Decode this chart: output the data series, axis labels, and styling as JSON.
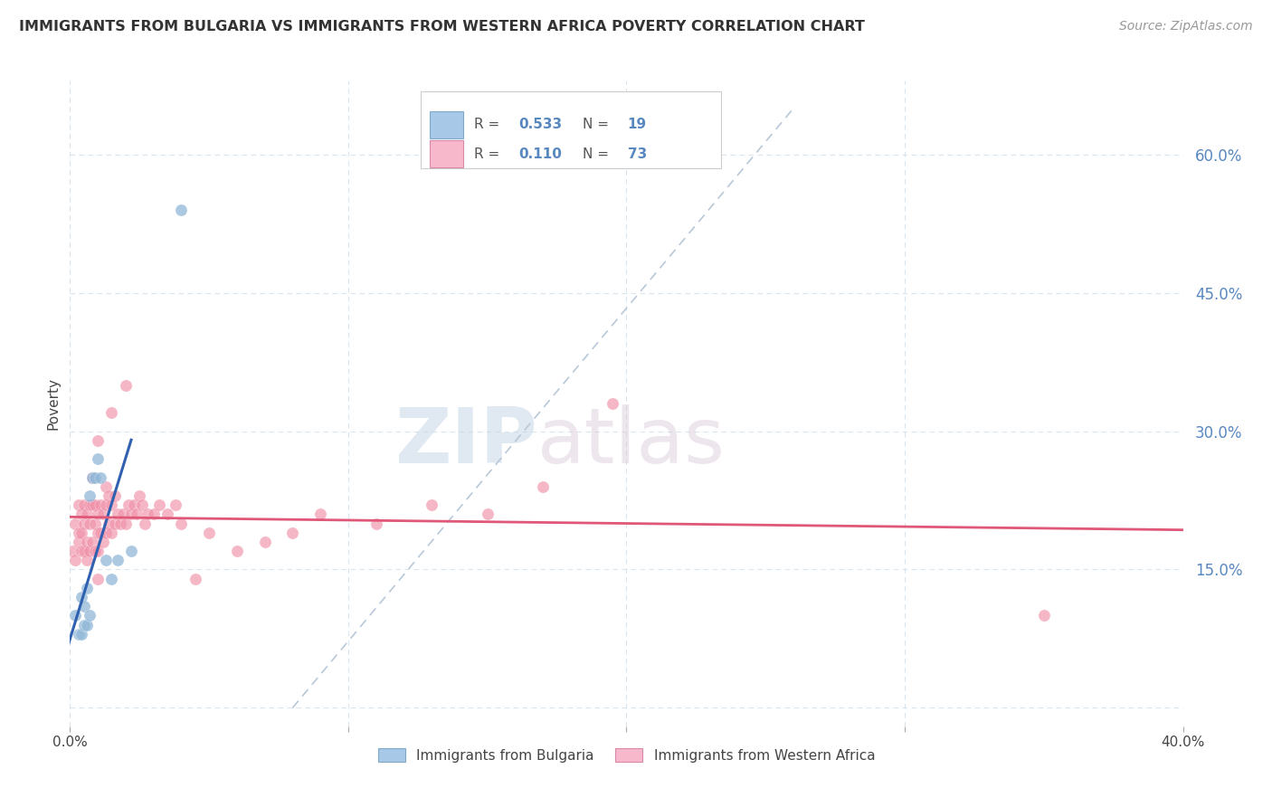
{
  "title": "IMMIGRANTS FROM BULGARIA VS IMMIGRANTS FROM WESTERN AFRICA POVERTY CORRELATION CHART",
  "source": "Source: ZipAtlas.com",
  "ylabel": "Poverty",
  "xlim": [
    0.0,
    0.4
  ],
  "ylim": [
    -0.02,
    0.68
  ],
  "yticks_right": [
    0.15,
    0.3,
    0.45,
    0.6
  ],
  "ytick_labels_right": [
    "15.0%",
    "30.0%",
    "45.0%",
    "60.0%"
  ],
  "legend_label1": "Immigrants from Bulgaria",
  "legend_label2": "Immigrants from Western Africa",
  "watermark_zip": "ZIP",
  "watermark_atlas": "atlas",
  "blue_color": "#a8c8e8",
  "blue_dot_color": "#90b8d8",
  "blue_line_color": "#3060b0",
  "pink_color": "#f8b8cc",
  "pink_dot_color": "#f090a8",
  "pink_line_color": "#e05878",
  "tick_color": "#5888c0",
  "grid_color": "#d8e4ee",
  "background_color": "#ffffff",
  "bulgaria_x": [
    0.002,
    0.003,
    0.004,
    0.004,
    0.005,
    0.005,
    0.006,
    0.006,
    0.007,
    0.007,
    0.008,
    0.009,
    0.01,
    0.011,
    0.013,
    0.015,
    0.017,
    0.022,
    0.04
  ],
  "bulgaria_y": [
    0.1,
    0.08,
    0.08,
    0.12,
    0.09,
    0.11,
    0.09,
    0.13,
    0.1,
    0.23,
    0.25,
    0.25,
    0.27,
    0.25,
    0.16,
    0.14,
    0.16,
    0.17,
    0.54
  ],
  "western_africa_x": [
    0.001,
    0.002,
    0.002,
    0.003,
    0.003,
    0.003,
    0.004,
    0.004,
    0.004,
    0.005,
    0.005,
    0.005,
    0.006,
    0.006,
    0.006,
    0.007,
    0.007,
    0.007,
    0.008,
    0.008,
    0.008,
    0.009,
    0.009,
    0.009,
    0.01,
    0.01,
    0.01,
    0.01,
    0.011,
    0.011,
    0.012,
    0.012,
    0.013,
    0.013,
    0.013,
    0.014,
    0.014,
    0.015,
    0.015,
    0.016,
    0.016,
    0.017,
    0.018,
    0.019,
    0.02,
    0.021,
    0.022,
    0.023,
    0.024,
    0.025,
    0.026,
    0.027,
    0.028,
    0.03,
    0.032,
    0.035,
    0.038,
    0.04,
    0.045,
    0.05,
    0.06,
    0.07,
    0.08,
    0.09,
    0.11,
    0.13,
    0.15,
    0.17,
    0.195,
    0.35,
    0.01,
    0.015,
    0.02
  ],
  "western_africa_y": [
    0.17,
    0.16,
    0.2,
    0.18,
    0.22,
    0.19,
    0.17,
    0.21,
    0.19,
    0.17,
    0.2,
    0.22,
    0.18,
    0.16,
    0.21,
    0.17,
    0.2,
    0.22,
    0.18,
    0.22,
    0.25,
    0.17,
    0.2,
    0.22,
    0.14,
    0.17,
    0.19,
    0.21,
    0.19,
    0.22,
    0.18,
    0.21,
    0.19,
    0.22,
    0.24,
    0.2,
    0.23,
    0.19,
    0.22,
    0.2,
    0.23,
    0.21,
    0.2,
    0.21,
    0.2,
    0.22,
    0.21,
    0.22,
    0.21,
    0.23,
    0.22,
    0.2,
    0.21,
    0.21,
    0.22,
    0.21,
    0.22,
    0.2,
    0.14,
    0.19,
    0.17,
    0.18,
    0.19,
    0.21,
    0.2,
    0.22,
    0.21,
    0.24,
    0.33,
    0.1,
    0.29,
    0.32,
    0.35
  ],
  "diag_line_x": [
    0.08,
    0.26
  ],
  "diag_line_y": [
    0.0,
    0.65
  ]
}
